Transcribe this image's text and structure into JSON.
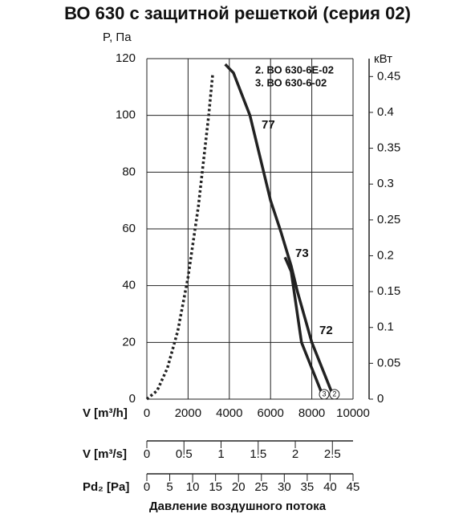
{
  "chart_data": {
    "type": "line",
    "title": "ВО 630 с защитной решеткой (серия 02)",
    "y_label": "P, Па",
    "y2_label": "кВт",
    "x_label": "V [m³/h]",
    "xlim": [
      0,
      10000
    ],
    "xticks": [
      0,
      2000,
      4000,
      6000,
      8000,
      10000
    ],
    "ylim": [
      0,
      120
    ],
    "yticks": [
      0,
      20,
      40,
      60,
      80,
      100,
      120
    ],
    "y2lim": [
      0,
      0.475
    ],
    "y2ticks": [
      0,
      0.05,
      0.1,
      0.15,
      0.2,
      0.25,
      0.3,
      0.35,
      0.4,
      0.45
    ],
    "grid": true,
    "series": [
      {
        "color": "#222222",
        "style": "dotted",
        "x": [
          0,
          500,
          1000,
          1500,
          2000,
          2500,
          3000,
          3200
        ],
        "values": [
          0,
          3,
          11,
          24,
          43,
          68,
          100,
          115
        ]
      },
      {
        "name": "2. ВО 630-6Е-02",
        "end_label": "2",
        "color": "#222222",
        "style": "solid",
        "x": [
          3800,
          4200,
          5000,
          6000,
          6500,
          7000,
          7300,
          8000,
          9100
        ],
        "values": [
          118,
          115,
          100,
          70,
          59,
          47,
          38,
          20,
          0
        ]
      },
      {
        "name": "3. ВО 630-6-02",
        "end_label": "3",
        "color": "#222222",
        "style": "solid",
        "x": [
          6700,
          7000,
          7500,
          8600
        ],
        "values": [
          50,
          45,
          20,
          0
        ]
      }
    ],
    "annotations": [
      "77",
      "73",
      "72"
    ],
    "secondary_axes": [
      {
        "label": "V [m³/s]",
        "xlim": [
          0,
          2.778
        ],
        "xticks": [
          0,
          0.5,
          1,
          1.5,
          2,
          2.5
        ]
      },
      {
        "label": "Pd₂ [Pa]",
        "xlim": [
          0,
          45
        ],
        "xticks": [
          0,
          5,
          10,
          15,
          20,
          25,
          30,
          35,
          40,
          45
        ]
      }
    ],
    "footer": "Давление воздушного потока"
  }
}
